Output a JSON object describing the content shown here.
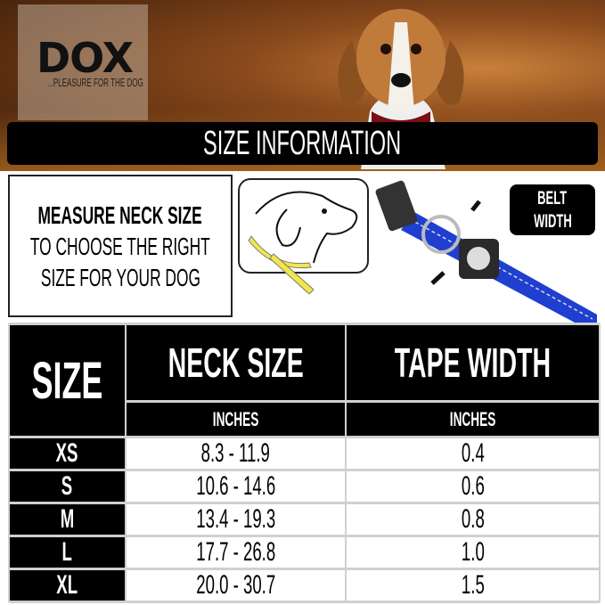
{
  "brand": {
    "logo": "DOX",
    "tagline": "...PLEASURE FOR THE DOG"
  },
  "title": "SIZE INFORMATION",
  "instructions": {
    "line1": "MEASURE NECK SIZE",
    "line2": "TO CHOOSE THE RIGHT",
    "line3": "SIZE FOR YOUR DOG"
  },
  "belt_badge": {
    "line1": "BELT",
    "line2": "WIDTH"
  },
  "colors": {
    "collar": "#1f3fd1",
    "background_top": "#8a4a1c",
    "tape": "#f2e64a"
  },
  "table": {
    "headers": {
      "size": "SIZE",
      "neck": "NECK SIZE",
      "tape": "TAPE WIDTH"
    },
    "units": {
      "neck": "INCHES",
      "tape": "INCHES"
    },
    "rows": [
      {
        "size": "XS",
        "neck": "8.3 - 11.9",
        "tape": "0.4"
      },
      {
        "size": "S",
        "neck": "10.6 - 14.6",
        "tape": "0.6"
      },
      {
        "size": "M",
        "neck": "13.4 - 19.3",
        "tape": "0.8"
      },
      {
        "size": "L",
        "neck": "17.7 - 26.8",
        "tape": "1.0"
      },
      {
        "size": "XL",
        "neck": "20.0 - 30.7",
        "tape": "1.5"
      }
    ]
  }
}
